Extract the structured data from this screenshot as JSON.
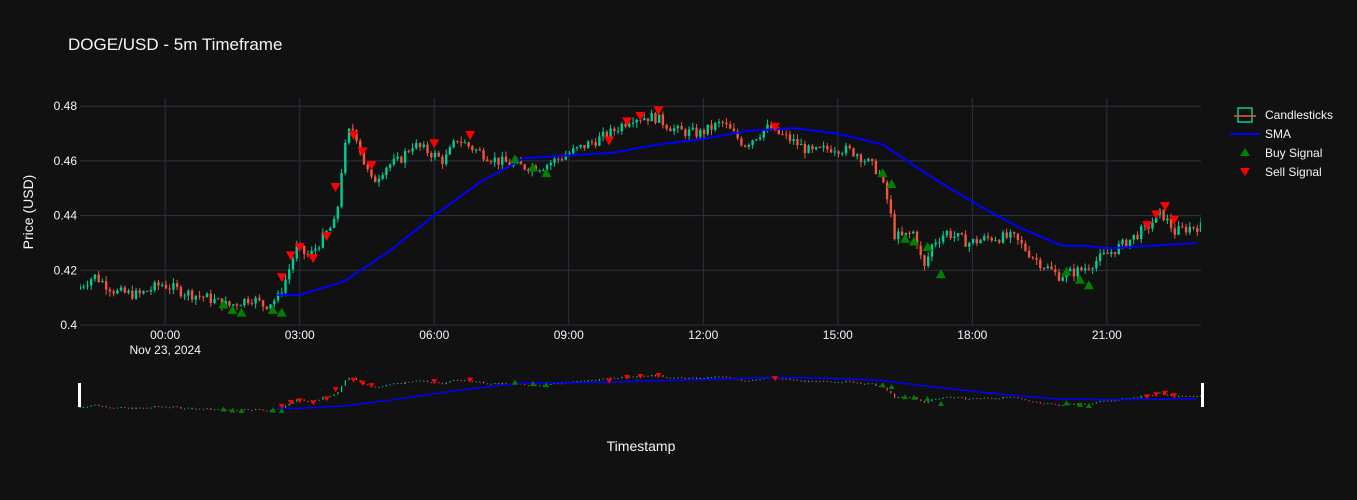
{
  "title": "DOGE/USD - 5m Timeframe",
  "colors": {
    "background": "#111111",
    "grid": "#283442",
    "increasing": "#00cc96",
    "decreasing": "#ef553b",
    "sma": "#0000ff",
    "buy": "#008000",
    "sell": "#ff0000",
    "text": "#f2f5fa"
  },
  "chart_data": {
    "type": "candlestick",
    "title": "DOGE/USD - 5m Timeframe",
    "xlabel": "Timestamp",
    "ylabel": "Price (USD)",
    "ylim": [
      0.4,
      0.483
    ],
    "xlim_hours": [
      -1.9,
      23.1
    ],
    "x_ticks": [
      {
        "hour": 0,
        "label": "00:00",
        "sublabel": "Nov 23, 2024"
      },
      {
        "hour": 3,
        "label": "03:00"
      },
      {
        "hour": 6,
        "label": "06:00"
      },
      {
        "hour": 9,
        "label": "09:00"
      },
      {
        "hour": 12,
        "label": "12:00"
      },
      {
        "hour": 15,
        "label": "15:00"
      },
      {
        "hour": 18,
        "label": "18:00"
      },
      {
        "hour": 21,
        "label": "21:00"
      }
    ],
    "y_ticks": [
      "0.48",
      "0.46",
      "0.44",
      "0.42",
      "0.4"
    ],
    "y_tick_values": [
      0.48,
      0.46,
      0.44,
      0.42,
      0.4
    ],
    "grid": true,
    "rangeslider": true,
    "legend_position": "top-right",
    "legend": [
      "Candlesticks",
      "SMA",
      "Buy Signal",
      "Sell Signal"
    ],
    "price_path_hours": [
      -1.9,
      -1.5,
      -1.0,
      -0.5,
      0.0,
      0.5,
      1.0,
      1.5,
      2.0,
      2.3,
      2.6,
      2.8,
      3.0,
      3.3,
      3.6,
      3.9,
      4.0,
      4.15,
      4.3,
      4.5,
      4.7,
      5.0,
      5.3,
      5.6,
      6.0,
      6.3,
      6.6,
      7.0,
      7.5,
      8.0,
      8.5,
      9.0,
      9.5,
      10.0,
      10.5,
      11.0,
      11.5,
      12.0,
      12.5,
      13.0,
      13.5,
      14.0,
      14.5,
      15.0,
      15.5,
      16.0,
      16.2,
      16.35,
      16.5,
      16.8,
      17.0,
      17.2,
      17.5,
      18.0,
      18.5,
      19.0,
      19.5,
      20.0,
      20.5,
      21.0,
      21.5,
      22.0,
      22.3,
      22.6,
      23.0
    ],
    "price_path_values": [
      0.413,
      0.418,
      0.412,
      0.411,
      0.415,
      0.412,
      0.41,
      0.407,
      0.41,
      0.407,
      0.41,
      0.418,
      0.428,
      0.425,
      0.432,
      0.438,
      0.455,
      0.47,
      0.472,
      0.46,
      0.452,
      0.458,
      0.46,
      0.466,
      0.463,
      0.46,
      0.468,
      0.464,
      0.46,
      0.458,
      0.458,
      0.462,
      0.466,
      0.47,
      0.476,
      0.476,
      0.471,
      0.47,
      0.474,
      0.466,
      0.472,
      0.468,
      0.463,
      0.465,
      0.463,
      0.456,
      0.445,
      0.433,
      0.432,
      0.434,
      0.42,
      0.43,
      0.434,
      0.43,
      0.432,
      0.432,
      0.424,
      0.418,
      0.42,
      0.425,
      0.43,
      0.436,
      0.441,
      0.434,
      0.436
    ],
    "sma_hours": [
      2.5,
      3.0,
      4.0,
      5.0,
      6.0,
      7.0,
      8.0,
      9.0,
      10.0,
      11.0,
      12.0,
      13.0,
      14.0,
      15.0,
      16.0,
      17.0,
      18.0,
      19.0,
      20.0,
      20.5,
      21.0,
      22.0,
      23.0
    ],
    "sma_values": [
      0.411,
      0.411,
      0.416,
      0.427,
      0.44,
      0.452,
      0.461,
      0.462,
      0.463,
      0.466,
      0.468,
      0.471,
      0.472,
      0.47,
      0.466,
      0.455,
      0.445,
      0.436,
      0.429,
      0.429,
      0.428,
      0.429,
      0.43
    ],
    "buy_signals": [
      {
        "hour": 1.3,
        "price": 0.409
      },
      {
        "hour": 1.5,
        "price": 0.407
      },
      {
        "hour": 1.7,
        "price": 0.406
      },
      {
        "hour": 2.4,
        "price": 0.407
      },
      {
        "hour": 2.6,
        "price": 0.406
      },
      {
        "hour": 7.8,
        "price": 0.462
      },
      {
        "hour": 8.2,
        "price": 0.459
      },
      {
        "hour": 8.5,
        "price": 0.457
      },
      {
        "hour": 16.0,
        "price": 0.457
      },
      {
        "hour": 16.2,
        "price": 0.453
      },
      {
        "hour": 16.5,
        "price": 0.433
      },
      {
        "hour": 16.7,
        "price": 0.432
      },
      {
        "hour": 17.0,
        "price": 0.43
      },
      {
        "hour": 17.3,
        "price": 0.42
      },
      {
        "hour": 20.1,
        "price": 0.421
      },
      {
        "hour": 20.4,
        "price": 0.418
      },
      {
        "hour": 20.6,
        "price": 0.416
      }
    ],
    "sell_signals": [
      {
        "hour": 2.6,
        "price": 0.416
      },
      {
        "hour": 2.8,
        "price": 0.424
      },
      {
        "hour": 3.0,
        "price": 0.427
      },
      {
        "hour": 3.3,
        "price": 0.423
      },
      {
        "hour": 3.6,
        "price": 0.431
      },
      {
        "hour": 3.8,
        "price": 0.449
      },
      {
        "hour": 4.2,
        "price": 0.468
      },
      {
        "hour": 4.4,
        "price": 0.462
      },
      {
        "hour": 4.6,
        "price": 0.457
      },
      {
        "hour": 6.0,
        "price": 0.465
      },
      {
        "hour": 6.8,
        "price": 0.468
      },
      {
        "hour": 9.9,
        "price": 0.466
      },
      {
        "hour": 10.3,
        "price": 0.473
      },
      {
        "hour": 10.6,
        "price": 0.475
      },
      {
        "hour": 11.0,
        "price": 0.477
      },
      {
        "hour": 13.6,
        "price": 0.471
      },
      {
        "hour": 21.9,
        "price": 0.435
      },
      {
        "hour": 22.1,
        "price": 0.439
      },
      {
        "hour": 22.3,
        "price": 0.442
      },
      {
        "hour": 22.5,
        "price": 0.437
      }
    ]
  }
}
